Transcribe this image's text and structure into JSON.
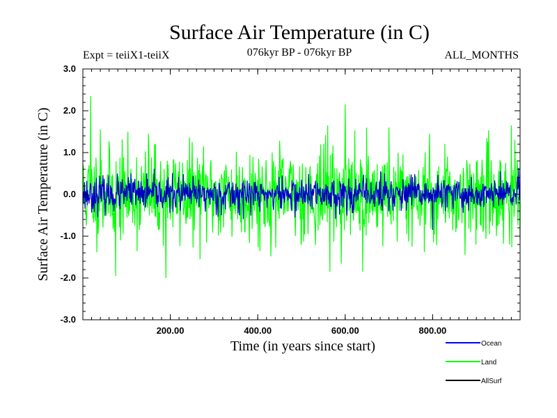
{
  "chart_data": {
    "type": "line",
    "title": "Surface Air Temperature (in C)",
    "subtitle_left": "Expt = teiiX1-teiiX",
    "subtitle_center": "076kyr BP - 076kyr BP",
    "subtitle_right": "ALL_MONTHS",
    "xlabel": "Time (in years since start)",
    "ylabel": "Surface Air Temperature (in C)",
    "xlim": [
      0,
      1000
    ],
    "ylim": [
      -3.0,
      3.0
    ],
    "x_ticks": [
      200,
      400,
      600,
      800
    ],
    "x_tick_labels": [
      "200.00",
      "400.00",
      "600.00",
      "800.00"
    ],
    "y_ticks": [
      -3.0,
      -2.0,
      -1.0,
      0.0,
      1.0,
      2.0,
      3.0
    ],
    "y_tick_labels": [
      "-3.0",
      "-2.0",
      "-1.0",
      "0.0",
      "1.0",
      "2.0",
      "3.0"
    ],
    "grid": false,
    "legend_position": "bottom-right",
    "series": [
      {
        "name": "Land",
        "color": "#00ff00",
        "seed": 11,
        "amp": 0.55,
        "extremes": [
          [
            18,
            2.35
          ],
          [
            600,
            2.15
          ],
          [
            190,
            -2.0
          ],
          [
            75,
            -1.95
          ],
          [
            565,
            -1.85
          ],
          [
            640,
            -1.85
          ],
          [
            980,
            1.65
          ],
          [
            40,
            1.55
          ],
          [
            560,
            1.65
          ],
          [
            700,
            1.6
          ],
          [
            150,
            1.45
          ]
        ]
      },
      {
        "name": "Ocean",
        "color": "#0000ff",
        "seed": 23,
        "amp": 0.2,
        "extremes": [
          [
            800,
            -0.85
          ],
          [
            955,
            0.55
          ],
          [
            110,
            0.5
          ],
          [
            690,
            0.5
          ]
        ]
      },
      {
        "name": "AllSurf",
        "color": "#000000",
        "seed": 23,
        "amp": 0.2,
        "extremes": []
      }
    ]
  }
}
